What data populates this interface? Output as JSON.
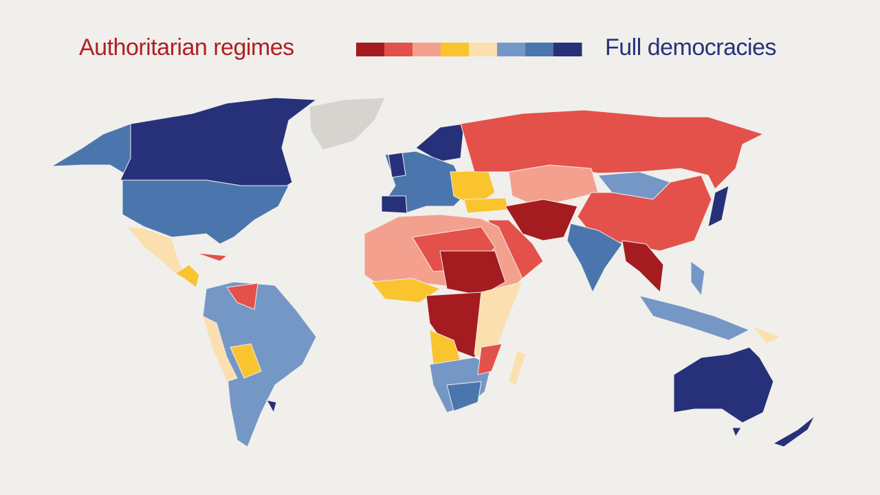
{
  "legend": {
    "left_label": "Authoritarian regimes",
    "right_label": "Full democracies",
    "colors": [
      "#a51c20",
      "#e4504a",
      "#f4a08f",
      "#f9c42e",
      "#fbdfae",
      "#7597c6",
      "#4a76ad",
      "#27317a"
    ]
  }
}
